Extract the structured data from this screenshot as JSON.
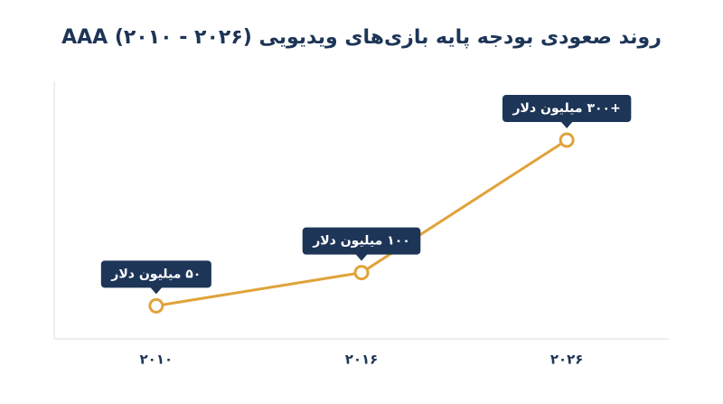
{
  "chart_data": {
    "type": "line",
    "title": "روند صعودی بودجه پایه بازی‌های ویدیویی AAA (۲۰۱۰ - ۲۰۲۶)",
    "categories": [
      "۲۰۱۰",
      "۲۰۱۶",
      "۲۰۲۶"
    ],
    "values": [
      50,
      100,
      300
    ],
    "value_labels": [
      "۵۰ میلیون دلار",
      "۱۰۰ میلیون دلار",
      "+۳۰۰ میلیون دلار"
    ],
    "color": "#E0A33A"
  }
}
